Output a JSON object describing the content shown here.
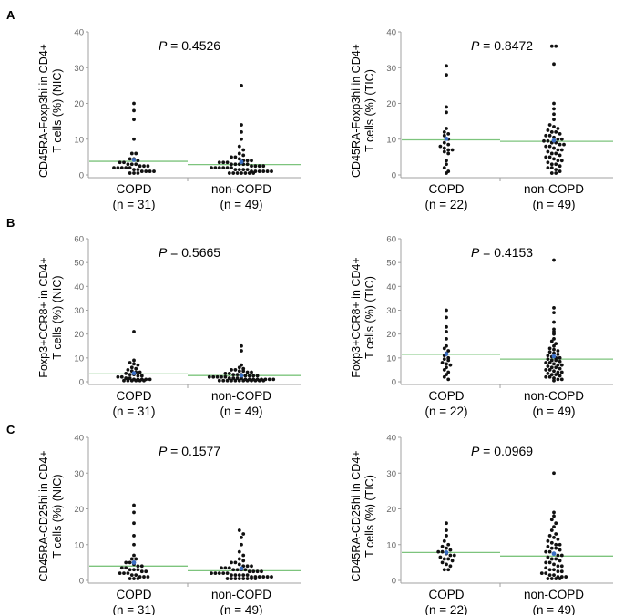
{
  "panel_labels": [
    "A",
    "B",
    "C"
  ],
  "chart_data": [
    {
      "type": "scatter",
      "panel": "A",
      "ylabel_line1": "CD45RA-Foxp3hi in CD4+",
      "ylabel_line2": "T cells (%) (NIC)",
      "ylim": [
        0,
        40
      ],
      "yticks": [
        "0",
        "10",
        "20",
        "30",
        "40"
      ],
      "p_label": "P",
      "p_value": " = 0.4526",
      "categories": [
        "COPD",
        "non-COPD"
      ],
      "n_labels": [
        "(n = 31)",
        "(n = 49)"
      ],
      "medians": [
        3.8,
        2.9
      ],
      "series": [
        {
          "name": "COPD",
          "values": [
            20,
            18,
            15.5,
            10,
            6,
            6,
            4.5,
            4.5,
            4,
            3.5,
            3.5,
            3,
            3,
            3,
            2.5,
            2.5,
            2.5,
            2,
            2,
            2,
            2,
            2,
            1.5,
            1.5,
            1,
            1,
            1,
            1,
            0.5,
            0.5,
            0.5
          ]
        },
        {
          "name": "non-COPD",
          "values": [
            25,
            14,
            12,
            10,
            8,
            7,
            6,
            5.5,
            5,
            5,
            4.5,
            4,
            4,
            4,
            3.5,
            3.5,
            3.5,
            3,
            3,
            3,
            3,
            3,
            2.5,
            2.5,
            2.5,
            2.5,
            2,
            2,
            2,
            2,
            2,
            2,
            1.5,
            1.5,
            1.5,
            1.5,
            1,
            1,
            1,
            1,
            1,
            1,
            0.5,
            0.5,
            0.5,
            0.5,
            0.5,
            0.5,
            0.5
          ]
        }
      ]
    },
    {
      "type": "scatter",
      "panel": "A",
      "ylabel_line1": "CD45RA-Foxp3hi in CD4+",
      "ylabel_line2": "T cells (%) (TIC)",
      "ylim": [
        0,
        40
      ],
      "yticks": [
        "0",
        "10",
        "20",
        "30",
        "40"
      ],
      "p_label": "P",
      "p_value": " = 0.8472",
      "categories": [
        "COPD",
        "non-COPD"
      ],
      "n_labels": [
        "(n = 22)",
        "(n = 49)"
      ],
      "medians": [
        9.8,
        9.4
      ],
      "series": [
        {
          "name": "COPD",
          "values": [
            30.5,
            28,
            19,
            17.5,
            13,
            12,
            11.5,
            11,
            10,
            9,
            8.5,
            8,
            7.5,
            7,
            7,
            6.5,
            6,
            4,
            3,
            2,
            1,
            0.5
          ]
        },
        {
          "name": "non-COPD",
          "values": [
            36,
            36,
            31,
            20,
            18.5,
            17,
            15.5,
            14,
            13.5,
            13,
            12.5,
            12,
            12,
            11.5,
            11,
            11,
            10.5,
            10,
            10,
            9.5,
            9.5,
            9,
            9,
            8.5,
            8.5,
            8,
            8,
            7.5,
            7,
            7,
            6.5,
            6,
            6,
            5.5,
            5,
            5,
            4.5,
            4,
            4,
            3.5,
            3,
            3,
            2.5,
            2,
            2,
            1.5,
            1,
            0.5,
            0.5
          ]
        }
      ]
    },
    {
      "type": "scatter",
      "panel": "B",
      "ylabel_line1": "Foxp3+CCR8+ in CD4+",
      "ylabel_line2": "T cells (%) (NIC)",
      "ylim": [
        0,
        60
      ],
      "yticks": [
        "0",
        "10",
        "20",
        "30",
        "40",
        "50",
        "60"
      ],
      "p_label": "P",
      "p_value": " = 0.5665",
      "categories": [
        "COPD",
        "non-COPD"
      ],
      "n_labels": [
        "(n = 31)",
        "(n = 49)"
      ],
      "medians": [
        3.3,
        2.6
      ],
      "series": [
        {
          "name": "COPD",
          "values": [
            21,
            9,
            8,
            7.5,
            7,
            6,
            5.5,
            5,
            4.5,
            4,
            4,
            3.5,
            3,
            3,
            2.5,
            2.5,
            2,
            2,
            1.5,
            1.5,
            1,
            1,
            1,
            1,
            1,
            0.5,
            0.5,
            0.5,
            0.5,
            0.5,
            0.5
          ]
        },
        {
          "name": "non-COPD",
          "values": [
            15,
            13,
            7,
            6,
            5.5,
            5,
            5,
            4.5,
            4.5,
            4,
            4,
            3.5,
            3.5,
            3,
            3,
            3,
            2.5,
            2.5,
            2.5,
            2.5,
            2,
            2,
            2,
            2,
            2,
            1.5,
            1.5,
            1.5,
            1.5,
            1,
            1,
            1,
            1,
            1,
            1,
            1,
            1,
            0.5,
            0.5,
            0.5,
            0.5,
            0.5,
            0.5,
            0.5,
            0.5,
            0.5,
            0.5,
            0.5,
            0.5
          ]
        }
      ]
    },
    {
      "type": "scatter",
      "panel": "B",
      "ylabel_line1": "Foxp3+CCR8+ in CD4+",
      "ylabel_line2": "T cells (%) (TIC)",
      "ylim": [
        0,
        60
      ],
      "yticks": [
        "0",
        "10",
        "20",
        "30",
        "40",
        "50",
        "60"
      ],
      "p_label": "P",
      "p_value": " = 0.4153",
      "categories": [
        "COPD",
        "non-COPD"
      ],
      "n_labels": [
        "(n = 22)",
        "(n = 49)"
      ],
      "medians": [
        11.5,
        9.5
      ],
      "series": [
        {
          "name": "COPD",
          "values": [
            30,
            27,
            23,
            21,
            18,
            15,
            14,
            13,
            12,
            11,
            10,
            9.5,
            9,
            8,
            7.5,
            7,
            6,
            5,
            4,
            3,
            2,
            1
          ]
        },
        {
          "name": "non-COPD",
          "values": [
            51,
            31,
            29,
            25,
            22,
            21,
            20,
            18,
            17,
            16,
            15,
            14,
            13.5,
            13,
            12.5,
            12,
            11.5,
            11,
            10.5,
            10,
            10,
            9.5,
            9,
            9,
            8.5,
            8,
            8,
            7.5,
            7,
            7,
            6.5,
            6,
            6,
            5.5,
            5,
            5,
            4.5,
            4,
            4,
            3.5,
            3,
            3,
            2.5,
            2,
            2,
            1.5,
            1,
            1,
            0.5
          ]
        }
      ]
    },
    {
      "type": "scatter",
      "panel": "C",
      "ylabel_line1": "CD45RA-CD25hi in CD4+",
      "ylabel_line2": "T cells (%) (NIC)",
      "ylim": [
        0,
        40
      ],
      "yticks": [
        "0",
        "10",
        "20",
        "30",
        "40"
      ],
      "p_label": "P",
      "p_value": " = 0.1577",
      "categories": [
        "COPD",
        "non-COPD"
      ],
      "n_labels": [
        "(n = 31)",
        "(n = 49)"
      ],
      "medians": [
        4.0,
        2.7
      ],
      "series": [
        {
          "name": "COPD",
          "values": [
            21,
            19,
            16,
            12.5,
            10,
            7,
            6,
            6,
            5,
            5,
            4.5,
            4,
            4,
            3.5,
            3.5,
            3,
            3,
            3,
            2.5,
            2.5,
            2,
            2,
            2,
            1.5,
            1.5,
            1,
            1,
            1,
            0.5,
            0.5,
            0.5
          ]
        },
        {
          "name": "non-COPD",
          "values": [
            14,
            13,
            12,
            10,
            8,
            7,
            6,
            5.5,
            5,
            5,
            4.5,
            4,
            4,
            4,
            3.5,
            3.5,
            3.5,
            3,
            3,
            3,
            3,
            2.5,
            2.5,
            2.5,
            2.5,
            2,
            2,
            2,
            2,
            2,
            1.5,
            1.5,
            1.5,
            1.5,
            1.5,
            1,
            1,
            1,
            1,
            1,
            1,
            0.5,
            0.5,
            0.5,
            0.5,
            0.5,
            0.5,
            0.5,
            0.5
          ]
        }
      ]
    },
    {
      "type": "scatter",
      "panel": "C",
      "ylabel_line1": "CD45RA-CD25hi in CD4+",
      "ylabel_line2": "T cells (%) (TIC)",
      "ylim": [
        0,
        40
      ],
      "yticks": [
        "0",
        "10",
        "20",
        "30",
        "40"
      ],
      "p_label": "P",
      "p_value": " = 0.0969",
      "categories": [
        "COPD",
        "non-COPD"
      ],
      "n_labels": [
        "(n = 22)",
        "(n = 49)"
      ],
      "medians": [
        7.8,
        6.8
      ],
      "series": [
        {
          "name": "COPD",
          "values": [
            16,
            14,
            12.5,
            11,
            10,
            9.5,
            9,
            8.5,
            8,
            8,
            7.5,
            7,
            7,
            6.5,
            6,
            6,
            5.5,
            5,
            4.5,
            4,
            3,
            3
          ]
        },
        {
          "name": "non-COPD",
          "values": [
            30,
            19,
            18,
            17,
            16,
            15,
            14,
            13,
            12.5,
            12,
            11.5,
            11,
            10.5,
            10,
            10,
            9.5,
            9,
            9,
            8.5,
            8,
            8,
            7.5,
            7,
            7,
            6.5,
            6,
            6,
            5.5,
            5,
            5,
            4.5,
            4,
            4,
            3.5,
            3,
            3,
            2.5,
            2.5,
            2,
            2,
            1.5,
            1.5,
            1,
            1,
            1,
            0.5,
            0.5,
            0.5,
            0.5
          ]
        }
      ]
    }
  ]
}
